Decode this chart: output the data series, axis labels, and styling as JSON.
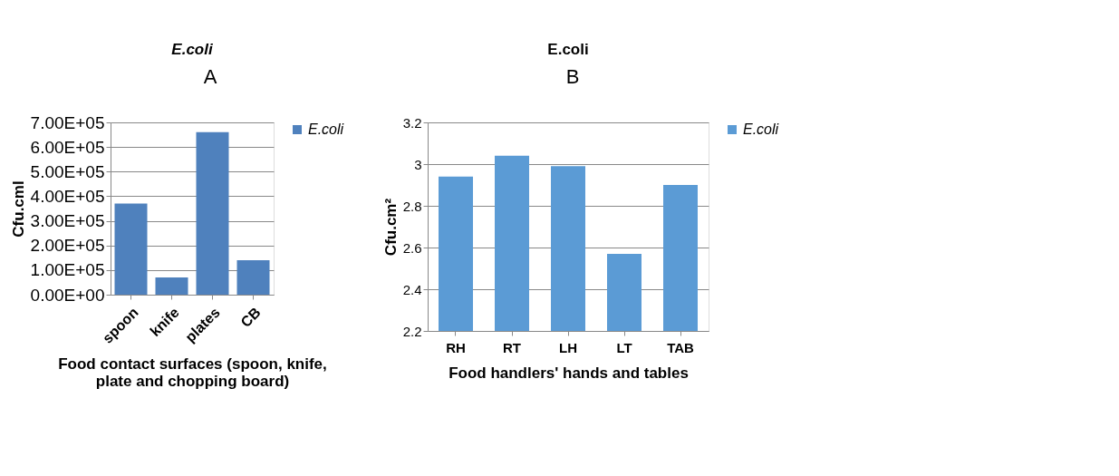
{
  "chart_data": [
    {
      "type": "bar",
      "title": "E.coli",
      "annotations": [
        "A"
      ],
      "xlabel": "Food contact surfaces (spoon, knife, plate and  chopping board)",
      "ylabel": "Cfu.cml",
      "categories": [
        "spoon",
        "knife",
        "plates",
        "CB"
      ],
      "series": [
        {
          "name": "E.coli",
          "color": "#4f81bd",
          "values": [
            370000,
            70000,
            660000,
            140000
          ]
        }
      ],
      "ylim": [
        0,
        700000
      ],
      "yticks": [
        {
          "value": 0,
          "label": "0.00E+00"
        },
        {
          "value": 100000,
          "label": "1.00E+05"
        },
        {
          "value": 200000,
          "label": "2.00E+05"
        },
        {
          "value": 300000,
          "label": "3.00E+05"
        },
        {
          "value": 400000,
          "label": "4.00E+05"
        },
        {
          "value": 500000,
          "label": "5.00E+05"
        },
        {
          "value": 600000,
          "label": "6.00E+05"
        },
        {
          "value": 700000,
          "label": "7.00E+05"
        }
      ],
      "grid": "y",
      "legend": "right"
    },
    {
      "type": "bar",
      "title": "E.coli",
      "annotations": [
        "B"
      ],
      "xlabel": "Food handlers' hands and tables",
      "ylabel": "Cfu.cm²",
      "categories": [
        "RH",
        "RT",
        "LH",
        "LT",
        "TAB"
      ],
      "series": [
        {
          "name": "E.coli",
          "color": "#5b9bd5",
          "values": [
            2.94,
            3.04,
            2.99,
            2.57,
            2.9
          ]
        }
      ],
      "ylim": [
        2.2,
        3.2
      ],
      "yticks": [
        2.2,
        2.4,
        2.6,
        2.8,
        3,
        3.2
      ],
      "grid": "y",
      "legend": "right"
    }
  ]
}
